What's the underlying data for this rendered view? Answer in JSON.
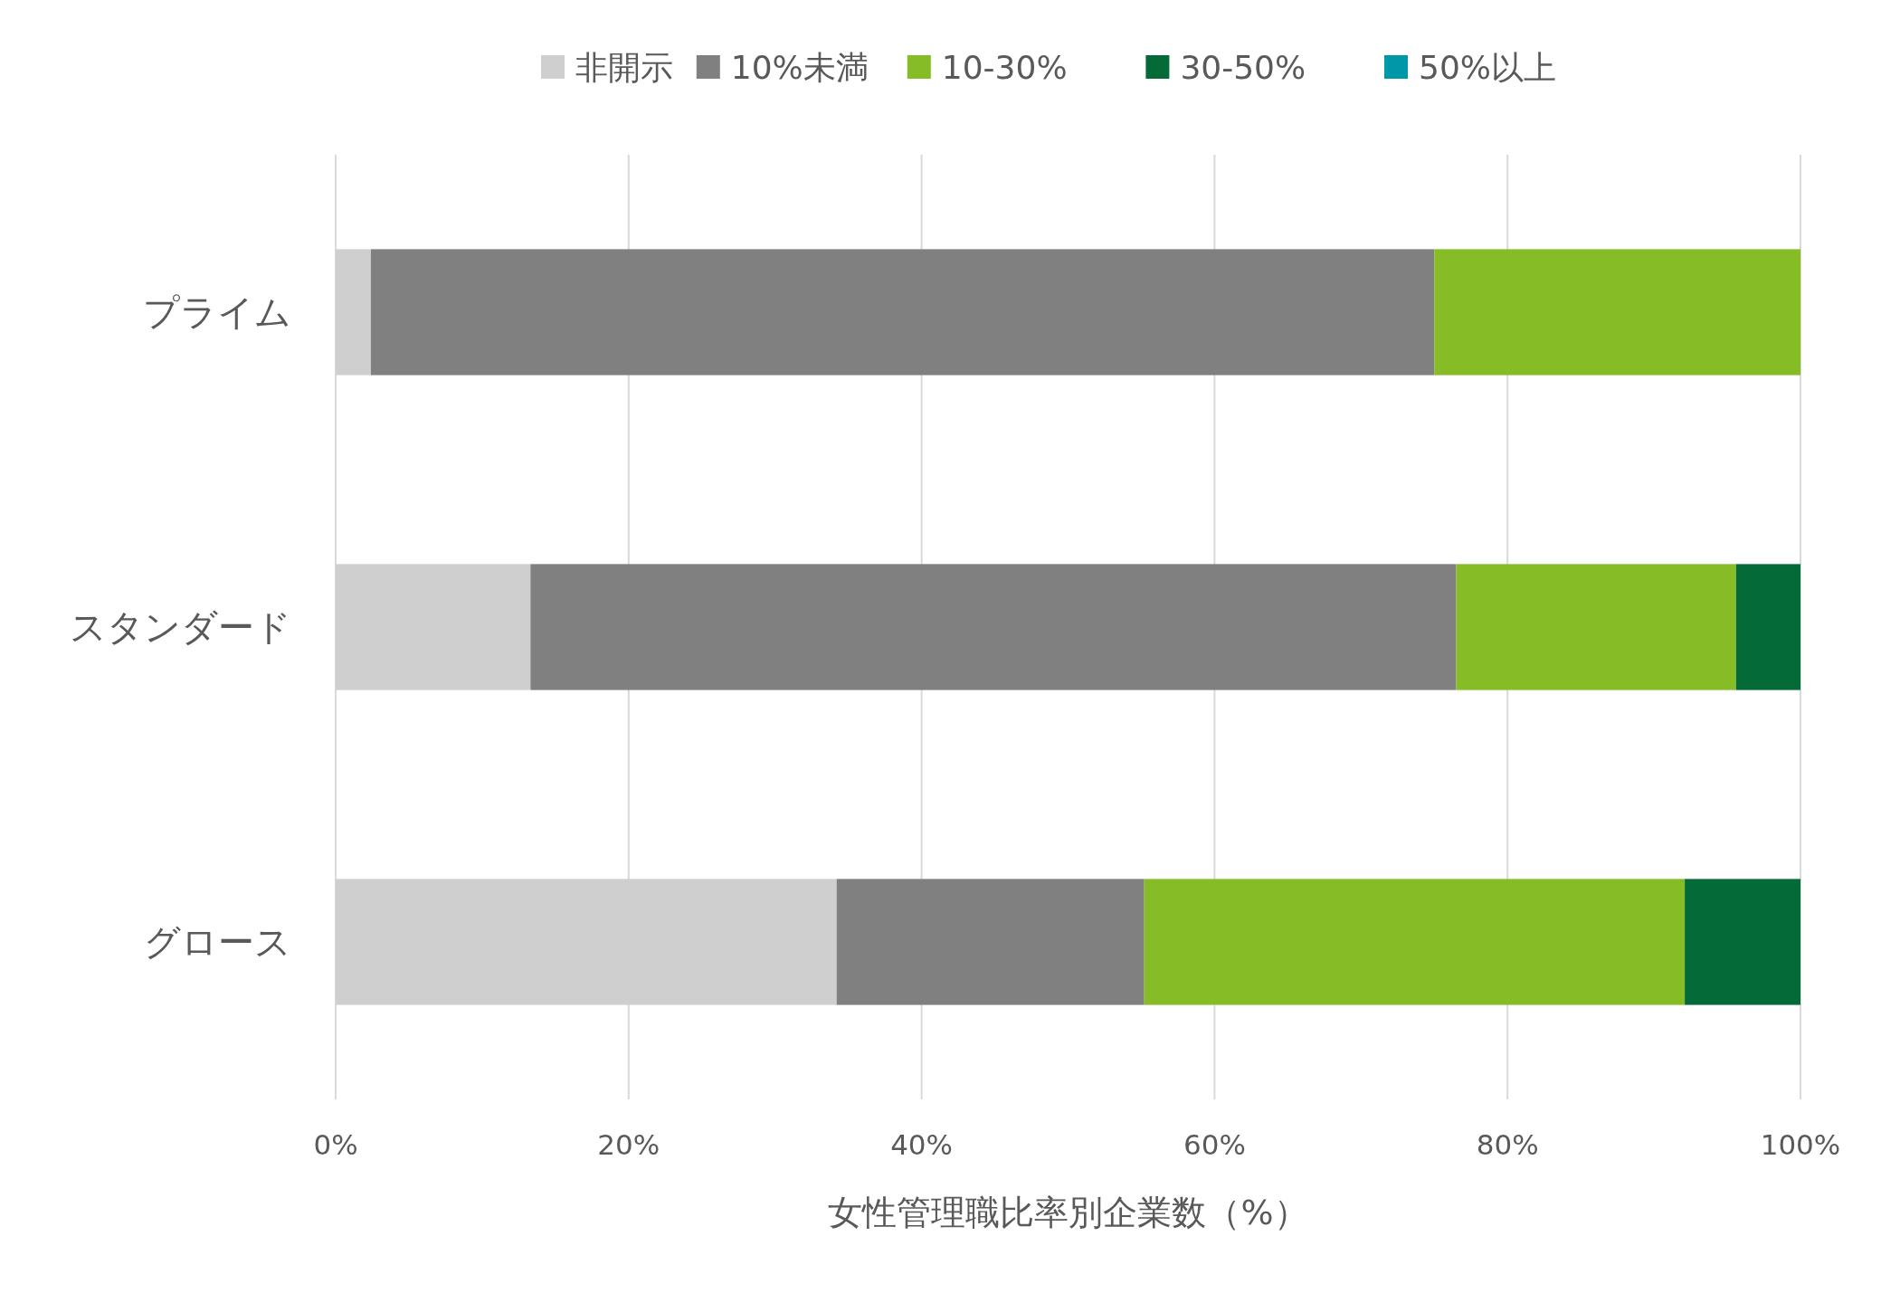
{
  "chart_data": {
    "type": "bar",
    "orientation": "horizontal",
    "stacked": true,
    "xlabel": "女性管理職比率別企業数（%）",
    "categories": [
      "プライム",
      "スタンダード",
      "グロース"
    ],
    "series": [
      {
        "name": "非開示",
        "color": "#d0cfcf",
        "values": [
          2.4,
          13.3,
          34.2
        ]
      },
      {
        "name": "10%未満",
        "color": "#808080",
        "values": [
          72.6,
          63.2,
          21.0
        ]
      },
      {
        "name": "10-30%",
        "color": "#86bc25",
        "values": [
          25.0,
          19.1,
          36.9
        ]
      },
      {
        "name": "30-50%",
        "color": "#046a38",
        "values": [
          0,
          4.4,
          7.9
        ]
      },
      {
        "name": "50%以上",
        "color": "#0097a9",
        "values": [
          0,
          0,
          0
        ]
      }
    ],
    "xlim": [
      0,
      100
    ],
    "xticks": [
      {
        "value": 0,
        "label": "0%"
      },
      {
        "value": 20,
        "label": "20%"
      },
      {
        "value": 40,
        "label": "40%"
      },
      {
        "value": 60,
        "label": "60%"
      },
      {
        "value": 80,
        "label": "80%"
      },
      {
        "value": 100,
        "label": "100%"
      }
    ],
    "grid": "x",
    "legend": "top"
  }
}
